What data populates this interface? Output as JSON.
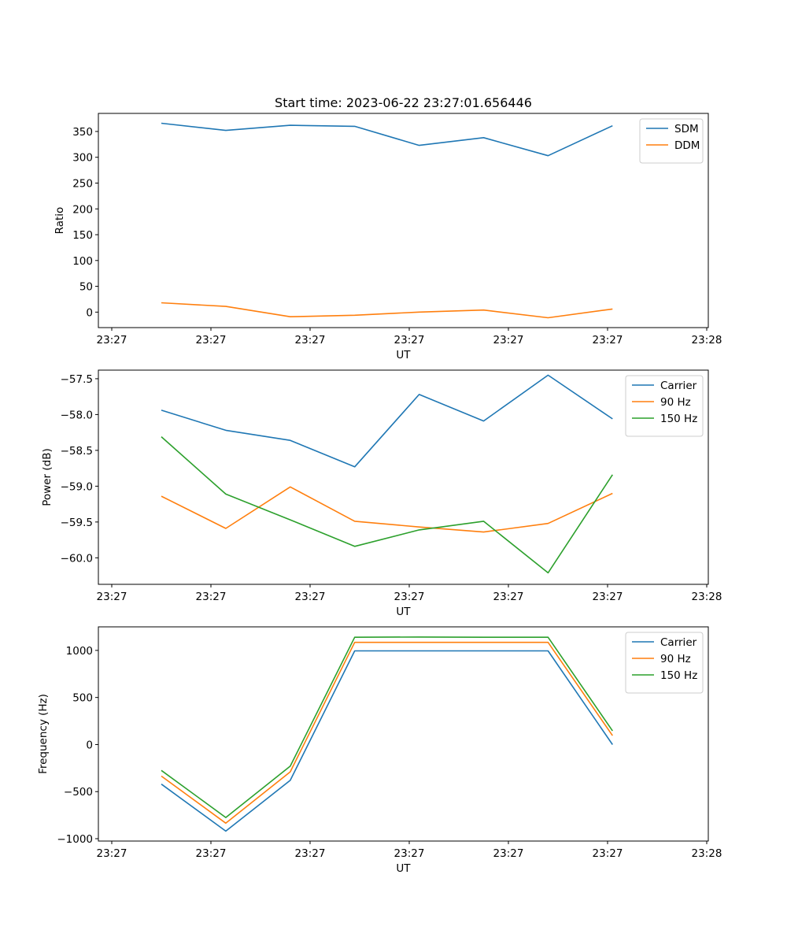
{
  "figure": {
    "title": "Start time: 2023-06-22 23:27:01.656446"
  },
  "chart_data": [
    {
      "type": "line",
      "title": "Start time: 2023-06-22 23:27:01.656446",
      "xlabel": "UT",
      "ylabel": "Ratio",
      "x_tick_labels": [
        "23:27",
        "23:27",
        "23:27",
        "23:27",
        "23:27",
        "23:27",
        "23:28"
      ],
      "y_ticks": [
        0,
        50,
        100,
        150,
        200,
        250,
        300,
        350
      ],
      "xlim": [
        0,
        6
      ],
      "ylim": [
        -30,
        385
      ],
      "x": [
        0.5,
        1.15,
        1.8,
        2.45,
        3.1,
        3.75,
        4.4,
        5.05
      ],
      "series": [
        {
          "name": "SDM",
          "color": "#1f77b4",
          "values": [
            366,
            352,
            362,
            360,
            323,
            338,
            303,
            361
          ]
        },
        {
          "name": "DDM",
          "color": "#ff7f0e",
          "values": [
            18,
            11,
            -9,
            -6,
            0,
            4,
            -11,
            6
          ]
        }
      ],
      "legend": "top-right",
      "grid": false
    },
    {
      "type": "line",
      "xlabel": "UT",
      "ylabel": "Power (dB)",
      "x_tick_labels": [
        "23:27",
        "23:27",
        "23:27",
        "23:27",
        "23:27",
        "23:27",
        "23:28"
      ],
      "y_ticks": [
        -57.5,
        -58.0,
        -58.5,
        -59.0,
        -59.5,
        -60.0
      ],
      "y_tick_labels": [
        "−57.5",
        "−58.0",
        "−58.5",
        "−59.0",
        "−59.5",
        "−60.0"
      ],
      "xlim": [
        0,
        6
      ],
      "ylim": [
        -60.37,
        -57.38
      ],
      "x": [
        0.5,
        1.15,
        1.8,
        2.45,
        3.1,
        3.75,
        4.4,
        5.05
      ],
      "series": [
        {
          "name": "Carrier",
          "color": "#1f77b4",
          "values": [
            -57.94,
            -58.22,
            -58.36,
            -58.73,
            -57.72,
            -58.09,
            -57.45,
            -58.06
          ]
        },
        {
          "name": "90 Hz",
          "color": "#ff7f0e",
          "values": [
            -59.14,
            -59.59,
            -59.01,
            -59.49,
            -59.57,
            -59.64,
            -59.52,
            -59.1
          ]
        },
        {
          "name": "150 Hz",
          "color": "#2ca02c",
          "values": [
            -58.31,
            -59.11,
            -59.47,
            -59.84,
            -59.61,
            -59.49,
            -60.21,
            -58.84
          ]
        }
      ],
      "legend": "top-right",
      "grid": false
    },
    {
      "type": "line",
      "xlabel": "UT",
      "ylabel": "Frequency (Hz)",
      "x_tick_labels": [
        "23:27",
        "23:27",
        "23:27",
        "23:27",
        "23:27",
        "23:27",
        "23:28"
      ],
      "y_ticks": [
        1000,
        500,
        0,
        -500,
        -1000
      ],
      "y_tick_labels": [
        "1000",
        "500",
        "0",
        "−500",
        "−1000"
      ],
      "xlim": [
        0,
        6
      ],
      "ylim": [
        -1025,
        1250
      ],
      "x": [
        0.5,
        1.15,
        1.8,
        2.45,
        3.1,
        3.75,
        4.4,
        5.05
      ],
      "series": [
        {
          "name": "Carrier",
          "color": "#1f77b4",
          "values": [
            -420,
            -920,
            -380,
            995,
            995,
            995,
            995,
            0
          ]
        },
        {
          "name": "90 Hz",
          "color": "#ff7f0e",
          "values": [
            -335,
            -835,
            -290,
            1085,
            1085,
            1085,
            1085,
            95
          ]
        },
        {
          "name": "150 Hz",
          "color": "#2ca02c",
          "values": [
            -275,
            -775,
            -230,
            1140,
            1142,
            1140,
            1140,
            145
          ]
        }
      ],
      "legend": "top-right",
      "grid": false
    }
  ]
}
